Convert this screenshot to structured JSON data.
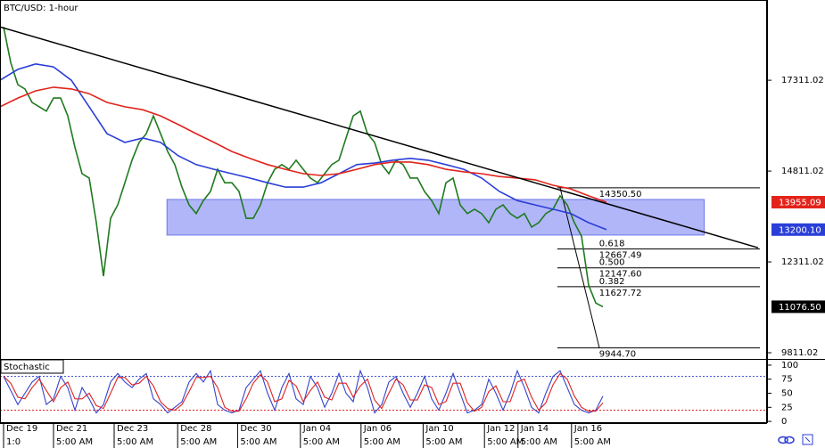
{
  "chart_data": [
    {
      "type": "line",
      "title": "BTC/USD: 1-hour",
      "xlim": [
        -0.5,
        107
      ],
      "ylim": [
        9640,
        19520
      ],
      "yticks": [
        17311.02,
        14811.02,
        12311.02,
        9811.02
      ],
      "series": [
        {
          "color": "#1f7a1f",
          "last_label": "11076.50",
          "values": [
            18780,
            17800,
            17190,
            17070,
            16700,
            16580,
            16460,
            16820,
            16820,
            16330,
            15470,
            14740,
            14620,
            13390,
            11920,
            13510,
            13880,
            14490,
            15110,
            15600,
            15840,
            16330,
            15840,
            15350,
            14990,
            14370,
            13880,
            13640,
            14000,
            14250,
            14860,
            14490,
            14490,
            14250,
            13510,
            13510,
            13880,
            14490,
            14860,
            14990,
            14860,
            15110,
            14860,
            14620,
            14490,
            14740,
            14990,
            15110,
            15720,
            16330,
            16460,
            15840,
            15600,
            14990,
            14740,
            15110,
            14990,
            14620,
            14620,
            14250,
            14000,
            13640,
            14490,
            14620,
            13880,
            13640,
            13760,
            13640,
            13390,
            13760,
            13880,
            13640,
            13510,
            13640,
            13270,
            13390,
            13640,
            13760,
            14130,
            13880,
            13390,
            13020,
            11670,
            11180,
            11076.5
          ]
        },
        {
          "color": "#2a3ed8",
          "last_label": "13200.10",
          "x": [
            -0.5,
            2,
            4.5,
            7,
            9.5,
            12,
            14.5,
            17,
            19.5,
            22,
            24.5,
            27,
            29.5,
            32,
            34.5,
            37,
            39.5,
            42,
            44.5,
            47,
            49.5,
            52,
            54.5,
            57,
            59.5,
            62,
            64.5,
            67,
            69.5,
            72,
            74.5,
            77,
            79.5,
            82,
            84.5
          ],
          "values": [
            17310,
            17610,
            17760,
            17680,
            17310,
            16580,
            15840,
            15600,
            15720,
            15600,
            15230,
            14990,
            14860,
            14740,
            14620,
            14490,
            14370,
            14370,
            14490,
            14740,
            14990,
            15030,
            15110,
            15160,
            15110,
            14990,
            14860,
            14620,
            14250,
            14000,
            13880,
            13760,
            13640,
            13390,
            13200.1
          ]
        },
        {
          "color": "#e2231a",
          "last_label": "13955.09",
          "x": [
            -0.5,
            2,
            4.5,
            7,
            9.5,
            12,
            14.5,
            17,
            19.5,
            22,
            24.5,
            27,
            29.5,
            32,
            34.5,
            37,
            39.5,
            42,
            44.5,
            47,
            49.5,
            52,
            54.5,
            57,
            59.5,
            62,
            64.5,
            67,
            69.5,
            72,
            74.5,
            77,
            79.5,
            82,
            84.5
          ],
          "values": [
            16580,
            16820,
            17020,
            17120,
            17070,
            16940,
            16700,
            16580,
            16500,
            16330,
            16090,
            15840,
            15600,
            15350,
            15160,
            14990,
            14860,
            14740,
            14690,
            14740,
            14860,
            14990,
            15060,
            15060,
            14990,
            14860,
            14790,
            14740,
            14660,
            14620,
            14570,
            14420,
            14320,
            14130,
            13955.09
          ]
        }
      ],
      "trendline": {
        "color": "#000000",
        "x": [
          -0.5,
          105.75
        ],
        "values": [
          18780,
          12700
        ]
      },
      "zone": {
        "color": "#a9aef7",
        "x": [
          22.9,
          98.2
        ],
        "values": [
          13050,
          14030
        ]
      },
      "fib": {
        "x": [
          77.6,
          106
        ],
        "swing_x": [
          78,
          83.5
        ],
        "levels": [
          {
            "value": 14350.5,
            "label": "14350.50"
          },
          {
            "value": 12667.49,
            "ratio": "0.618",
            "label": "12667.49"
          },
          {
            "value": 12147.6,
            "ratio": "0.500",
            "label": "12147.60"
          },
          {
            "value": 11627.72,
            "ratio": "0.382",
            "label": "11627.72"
          },
          {
            "value": 9944.7,
            "label": "9944.70"
          }
        ]
      }
    },
    {
      "type": "line",
      "title": "Stochastic",
      "xlim": [
        -0.5,
        107
      ],
      "ylim": [
        -3,
        111
      ],
      "yticks": [
        100,
        75,
        50,
        25,
        0
      ],
      "levels": [
        {
          "value": 80,
          "color": "#3344cc"
        },
        {
          "value": 20,
          "color": "#dd2222"
        }
      ],
      "series": [
        {
          "color": "#3344cc",
          "values": [
            80,
            55,
            30,
            50,
            70,
            80,
            30,
            40,
            80,
            60,
            20,
            60,
            40,
            15,
            30,
            70,
            85,
            70,
            60,
            75,
            85,
            40,
            30,
            15,
            25,
            35,
            70,
            85,
            70,
            90,
            30,
            20,
            15,
            20,
            60,
            75,
            90,
            50,
            20,
            60,
            85,
            40,
            30,
            80,
            60,
            25,
            50,
            85,
            50,
            35,
            90,
            60,
            15,
            30,
            70,
            80,
            50,
            25,
            50,
            80,
            40,
            20,
            50,
            85,
            50,
            15,
            20,
            30,
            75,
            50,
            20,
            50,
            90,
            60,
            25,
            15,
            50,
            80,
            90,
            60,
            30,
            20,
            15,
            20,
            45
          ]
        },
        {
          "color": "#dd2222",
          "values": [
            80,
            68,
            43,
            40,
            60,
            75,
            55,
            35,
            60,
            70,
            40,
            40,
            50,
            28,
            23,
            50,
            78,
            78,
            65,
            68,
            80,
            63,
            35,
            23,
            20,
            30,
            53,
            78,
            78,
            80,
            60,
            25,
            18,
            18,
            40,
            68,
            83,
            70,
            35,
            40,
            73,
            63,
            35,
            55,
            70,
            43,
            38,
            68,
            68,
            43,
            63,
            75,
            38,
            23,
            50,
            75,
            65,
            38,
            38,
            65,
            60,
            30,
            35,
            68,
            68,
            33,
            18,
            25,
            53,
            63,
            35,
            35,
            70,
            75,
            43,
            20,
            33,
            65,
            85,
            75,
            45,
            25,
            18,
            18,
            33
          ]
        }
      ],
      "xticks": [
        {
          "value": 0,
          "label": "Dec 19"
        },
        {
          "value": 7,
          "label": "Dec 21"
        },
        {
          "value": 15.5,
          "label": "Dec 23"
        },
        {
          "value": 24.4,
          "label": "Dec 28"
        },
        {
          "value": 32.8,
          "label": "Dec 30"
        },
        {
          "value": 41.6,
          "label": "Jan 04"
        },
        {
          "value": 50.1,
          "label": "Jan 06"
        },
        {
          "value": 58.8,
          "label": "Jan 10"
        },
        {
          "value": 67.4,
          "label": "Jan 12"
        },
        {
          "value": 72.1,
          "label": "Jan 14"
        },
        {
          "value": 79.6,
          "label": "Jan 16"
        }
      ],
      "xtick_times": [
        "1:0",
        "5:00 AM",
        "5:00 AM",
        "5:00 AM",
        "5:00 AM",
        "5:00 AM",
        "5:00 AM",
        "5:00 AM",
        "5:00 AM",
        "5:00 AM",
        "5:00 AM"
      ]
    }
  ]
}
